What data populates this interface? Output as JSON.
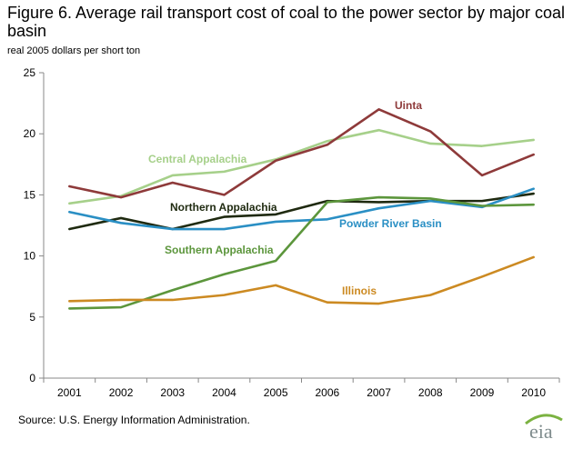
{
  "title": "Figure 6. Average rail transport cost of coal to the power sector by major coal  basin",
  "ylabel": "real 2005 dollars per short ton",
  "source": "Source: U.S. Energy  Information Administration.",
  "logo_text": "eia",
  "chart_data": {
    "type": "line",
    "title": "Figure 6. Average rail transport cost of coal to the power sector by major coal  basin",
    "xlabel": "",
    "ylabel": "real 2005 dollars per short ton",
    "x": [
      "2001",
      "2002",
      "2003",
      "2004",
      "2005",
      "2006",
      "2007",
      "2008",
      "2009",
      "2010"
    ],
    "ylim": [
      0,
      25
    ],
    "yticks": [
      0,
      5,
      10,
      15,
      20,
      25
    ],
    "grid": false,
    "legend": "inline labels",
    "series": [
      {
        "name": "Central Appalachia",
        "color": "#a6d08a",
        "values": [
          14.3,
          14.9,
          16.6,
          16.9,
          17.9,
          19.4,
          20.3,
          19.2,
          19.0,
          19.5
        ]
      },
      {
        "name": "Uinta",
        "color": "#8e3a3a",
        "values": [
          15.7,
          14.8,
          16.0,
          15.0,
          17.8,
          19.1,
          22.0,
          20.2,
          16.6,
          18.3
        ]
      },
      {
        "name": "Northern Appalachia",
        "color": "#1f2a10",
        "values": [
          12.2,
          13.1,
          12.2,
          13.2,
          13.4,
          14.5,
          14.4,
          14.5,
          14.5,
          15.1
        ]
      },
      {
        "name": "Powder River Basin",
        "color": "#2a8fc4",
        "values": [
          13.6,
          12.7,
          12.2,
          12.2,
          12.8,
          13.0,
          13.9,
          14.5,
          14.0,
          15.5
        ]
      },
      {
        "name": "Southern Appalachia",
        "color": "#5c963c",
        "values": [
          5.7,
          5.8,
          7.2,
          8.5,
          9.6,
          14.4,
          14.8,
          14.7,
          14.1,
          14.2
        ]
      },
      {
        "name": "Illinois",
        "color": "#cc8a22",
        "values": [
          6.3,
          6.4,
          6.4,
          6.8,
          7.6,
          6.2,
          6.1,
          6.8,
          8.3,
          9.9
        ]
      }
    ]
  }
}
